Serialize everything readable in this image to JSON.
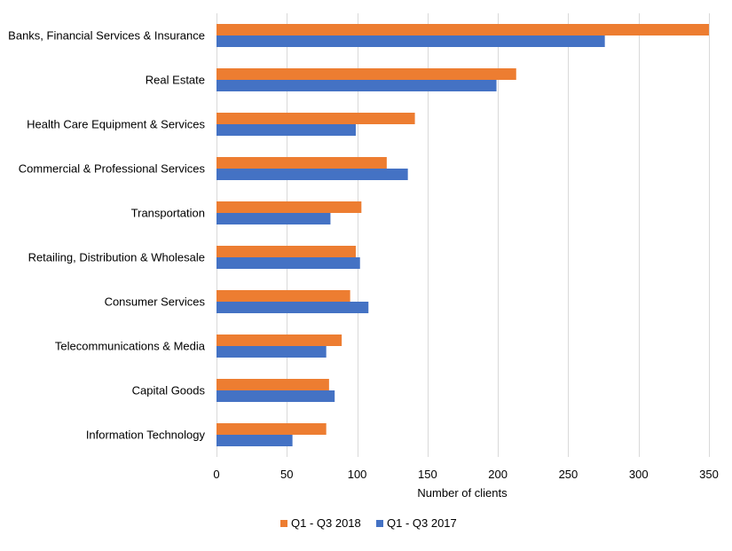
{
  "chart_data": {
    "type": "bar",
    "orientation": "horizontal",
    "categories": [
      "Banks, Financial Services & Insurance",
      "Real Estate",
      "Health Care Equipment & Services",
      "Commercial & Professional Services",
      "Transportation",
      "Retailing, Distribution & Wholesale",
      "Consumer Services",
      "Telecommunications & Media",
      "Capital Goods",
      "Information Technology"
    ],
    "series": [
      {
        "name": "Q1 - Q3 2018",
        "color": "#ed7d31",
        "values": [
          350,
          213,
          141,
          121,
          103,
          99,
          95,
          89,
          80,
          78
        ]
      },
      {
        "name": "Q1 - Q3 2017",
        "color": "#4472c4",
        "values": [
          276,
          199,
          99,
          136,
          81,
          102,
          108,
          78,
          84,
          54
        ]
      }
    ],
    "xlabel": "Number of clients",
    "ylabel": "",
    "title": "",
    "xlim": [
      0,
      350
    ],
    "xticks": [
      0,
      50,
      100,
      150,
      200,
      250,
      300,
      350
    ],
    "grid": true,
    "legend_position": "bottom"
  }
}
